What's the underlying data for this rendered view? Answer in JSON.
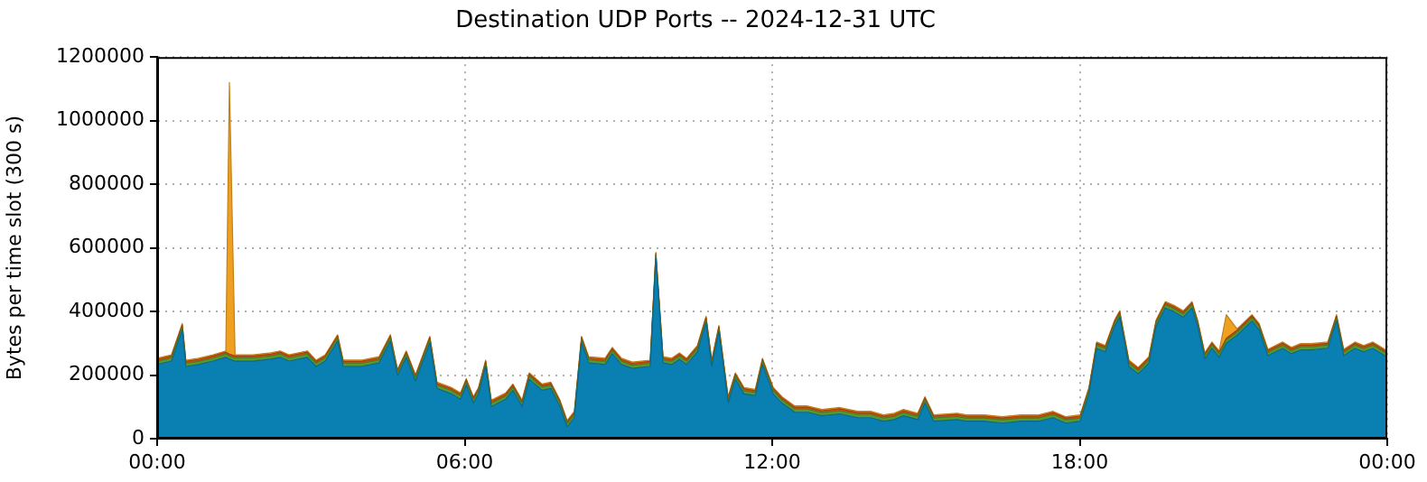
{
  "chart_data": {
    "type": "area",
    "stacked": true,
    "title": "Destination UDP Ports -- 2024-12-31 UTC",
    "ylabel": "Bytes per time slot (300 s)",
    "x": [
      0,
      0.28,
      0.49,
      0.56,
      0.81,
      1.09,
      1.34,
      1.41,
      1.52,
      1.87,
      2.22,
      2.4,
      2.57,
      2.93,
      3.1,
      3.28,
      3.52,
      3.63,
      3.98,
      4.33,
      4.55,
      4.69,
      4.86,
      5.04,
      5.32,
      5.46,
      5.74,
      5.92,
      6.03,
      6.17,
      6.27,
      6.41,
      6.52,
      6.8,
      6.94,
      7.12,
      7.26,
      7.51,
      7.68,
      7.86,
      8.0,
      8.14,
      8.28,
      8.42,
      8.74,
      8.88,
      9.06,
      9.27,
      9.62,
      9.73,
      9.87,
      10.04,
      10.19,
      10.33,
      10.54,
      10.71,
      10.82,
      10.96,
      11.14,
      11.28,
      11.45,
      11.67,
      11.81,
      12.02,
      12.19,
      12.44,
      12.69,
      12.97,
      13.32,
      13.67,
      13.92,
      14.17,
      14.38,
      14.56,
      14.84,
      14.98,
      15.15,
      15.61,
      15.79,
      16.14,
      16.49,
      16.85,
      17.2,
      17.48,
      17.73,
      18.01,
      18.18,
      18.33,
      18.5,
      18.68,
      18.78,
      18.96,
      19.14,
      19.35,
      19.49,
      19.67,
      19.84,
      20.02,
      20.19,
      20.3,
      20.44,
      20.58,
      20.72,
      20.86,
      21.07,
      21.36,
      21.5,
      21.67,
      21.96,
      22.13,
      22.31,
      22.52,
      22.84,
      23.01,
      23.15,
      23.37,
      23.54,
      23.72,
      24
    ],
    "series": [
      {
        "color": "#0a80b2",
        "values": [
          233000,
          244000,
          342000,
          227000,
          233000,
          244000,
          256000,
          250000,
          244000,
          244000,
          250000,
          256000,
          244000,
          256000,
          227000,
          244000,
          307000,
          227000,
          227000,
          238000,
          307000,
          198000,
          256000,
          181000,
          302000,
          158000,
          141000,
          124000,
          169000,
          112000,
          141000,
          227000,
          101000,
          124000,
          152000,
          101000,
          187000,
          152000,
          158000,
          101000,
          37000,
          66000,
          302000,
          238000,
          233000,
          267000,
          233000,
          221000,
          227000,
          566000,
          238000,
          233000,
          250000,
          233000,
          273000,
          365000,
          227000,
          336000,
          112000,
          187000,
          141000,
          135000,
          233000,
          141000,
          112000,
          83000,
          83000,
          72000,
          78000,
          66000,
          66000,
          55000,
          60000,
          72000,
          60000,
          112000,
          55000,
          60000,
          55000,
          55000,
          49000,
          55000,
          55000,
          66000,
          49000,
          55000,
          141000,
          284000,
          273000,
          353000,
          382000,
          227000,
          204000,
          238000,
          353000,
          411000,
          399000,
          382000,
          411000,
          353000,
          250000,
          284000,
          256000,
          300000,
          325000,
          370000,
          342000,
          261000,
          284000,
          267000,
          279000,
          279000,
          284000,
          370000,
          261000,
          284000,
          273000,
          284000,
          256000
        ]
      },
      {
        "color": "#5a9a2a",
        "values": [
          10000,
          10000,
          10000,
          10000,
          10000,
          10000,
          10000,
          10000,
          10000,
          10000,
          10000,
          10000,
          10000,
          10000,
          10000,
          10000,
          10000,
          10000,
          10000,
          10000,
          10000,
          10000,
          10000,
          10000,
          10000,
          10000,
          10000,
          10000,
          10000,
          10000,
          10000,
          10000,
          10000,
          10000,
          10000,
          10000,
          10000,
          10000,
          10000,
          10000,
          10000,
          10000,
          10000,
          10000,
          10000,
          10000,
          10000,
          10000,
          10000,
          10000,
          10000,
          10000,
          10000,
          10000,
          10000,
          10000,
          10000,
          10000,
          10000,
          10000,
          10000,
          10000,
          10000,
          10000,
          10000,
          10000,
          10000,
          10000,
          10000,
          10000,
          10000,
          10000,
          10000,
          10000,
          10000,
          10000,
          10000,
          10000,
          10000,
          10000,
          10000,
          10000,
          10000,
          10000,
          10000,
          10000,
          10000,
          10000,
          10000,
          10000,
          10000,
          10000,
          10000,
          10000,
          10000,
          10000,
          10000,
          10000,
          10000,
          10000,
          10000,
          10000,
          10000,
          10000,
          10000,
          10000,
          10000,
          10000,
          10000,
          10000,
          10000,
          10000,
          10000,
          10000,
          10000,
          10000,
          10000,
          10000,
          10000
        ]
      },
      {
        "color": "#d04a10",
        "values": [
          6000,
          6000,
          6000,
          6000,
          6000,
          6000,
          6000,
          6000,
          6000,
          6000,
          6000,
          6000,
          6000,
          6000,
          6000,
          6000,
          6000,
          6000,
          6000,
          6000,
          6000,
          6000,
          6000,
          6000,
          6000,
          6000,
          6000,
          6000,
          6000,
          6000,
          6000,
          6000,
          6000,
          6000,
          6000,
          6000,
          6000,
          6000,
          6000,
          6000,
          6000,
          6000,
          6000,
          6000,
          6000,
          6000,
          6000,
          6000,
          6000,
          6000,
          6000,
          6000,
          6000,
          6000,
          6000,
          6000,
          6000,
          6000,
          6000,
          6000,
          6000,
          6000,
          6000,
          6000,
          6000,
          6000,
          6000,
          6000,
          6000,
          6000,
          6000,
          6000,
          6000,
          6000,
          6000,
          6000,
          6000,
          6000,
          6000,
          6000,
          6000,
          6000,
          6000,
          6000,
          6000,
          6000,
          6000,
          6000,
          6000,
          6000,
          6000,
          6000,
          6000,
          6000,
          6000,
          6000,
          6000,
          6000,
          6000,
          6000,
          6000,
          6000,
          6000,
          6000,
          6000,
          6000,
          6000,
          6000,
          6000,
          6000,
          6000,
          6000,
          6000,
          6000,
          6000,
          6000,
          6000,
          6000,
          6000
        ]
      },
      {
        "color": "#f0a020",
        "values": [
          4000,
          4000,
          4000,
          4000,
          4000,
          4000,
          4000,
          854000,
          4000,
          4000,
          4000,
          4000,
          4000,
          4000,
          4000,
          4000,
          4000,
          4000,
          4000,
          4000,
          4000,
          4000,
          4000,
          4000,
          4000,
          4000,
          4000,
          4000,
          4000,
          4000,
          4000,
          4000,
          4000,
          4000,
          4000,
          4000,
          4000,
          4000,
          4000,
          4000,
          4000,
          4000,
          4000,
          4000,
          4000,
          4000,
          4000,
          4000,
          4000,
          4000,
          4000,
          4000,
          4000,
          4000,
          4000,
          4000,
          4000,
          4000,
          4000,
          4000,
          4000,
          4000,
          4000,
          4000,
          4000,
          4000,
          4000,
          4000,
          4000,
          4000,
          4000,
          4000,
          4000,
          4000,
          4000,
          4000,
          4000,
          4000,
          4000,
          4000,
          4000,
          4000,
          4000,
          4000,
          4000,
          4000,
          4000,
          4000,
          4000,
          4000,
          4000,
          4000,
          4000,
          4000,
          4000,
          4000,
          4000,
          4000,
          4000,
          4000,
          4000,
          4000,
          4000,
          74000,
          4000,
          4000,
          4000,
          4000,
          4000,
          4000,
          4000,
          4000,
          4000,
          4000,
          4000,
          4000,
          4000,
          4000,
          4000
        ]
      }
    ],
    "xlim": [
      0,
      24
    ],
    "xticks": [
      {
        "value": 0,
        "label": "00:00"
      },
      {
        "value": 6,
        "label": "06:00"
      },
      {
        "value": 12,
        "label": "12:00"
      },
      {
        "value": 18,
        "label": "18:00"
      },
      {
        "value": 24,
        "label": "00:00"
      }
    ],
    "ylim": [
      0,
      1200000
    ],
    "yticks": [
      0,
      200000,
      400000,
      600000,
      800000,
      1000000,
      1200000
    ],
    "grid": true,
    "legend": false,
    "marker": "none"
  }
}
